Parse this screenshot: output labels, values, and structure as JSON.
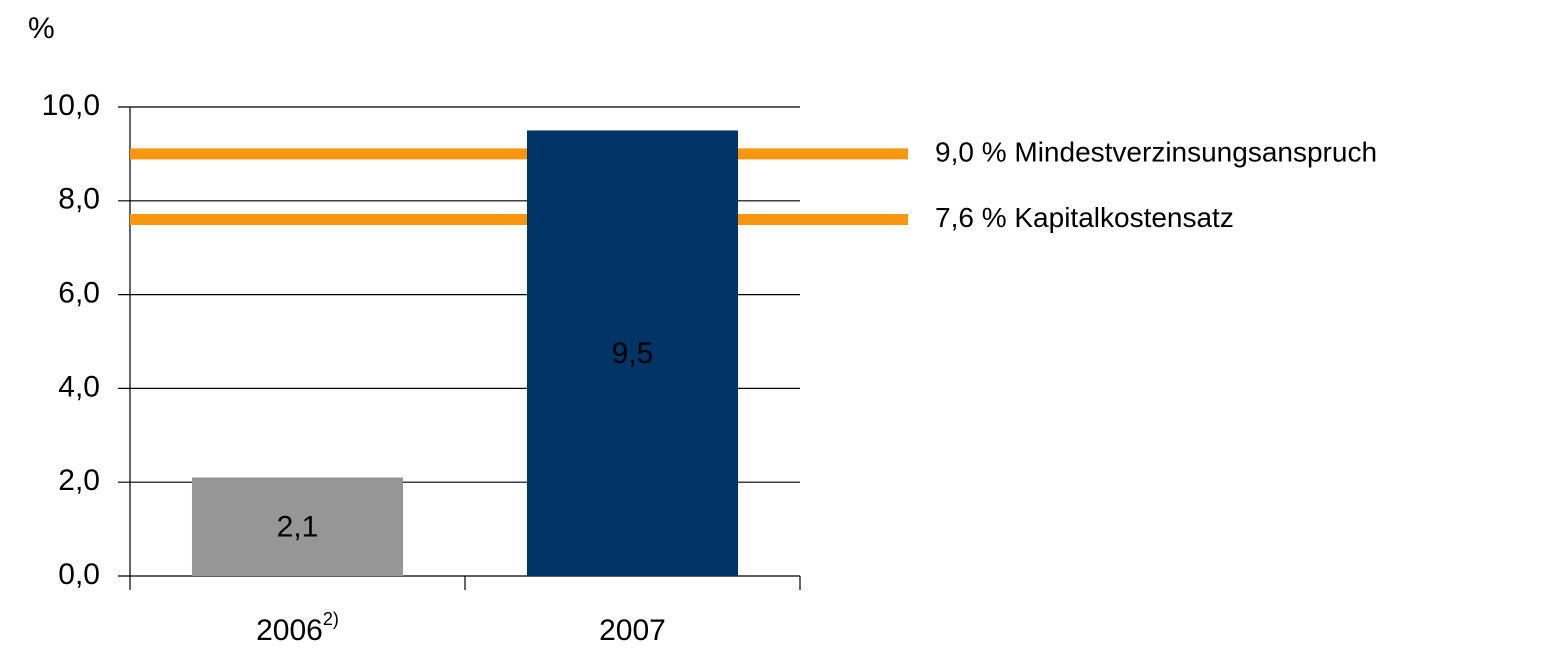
{
  "chart_data": {
    "type": "bar",
    "ylabel": "%",
    "categories": [
      "2006",
      "2007"
    ],
    "category_notes": [
      "2)",
      null
    ],
    "values": [
      2.1,
      9.5
    ],
    "value_labels": [
      "2,1",
      "9,5"
    ],
    "colors": [
      "#969696",
      "#003366"
    ],
    "ylim": [
      0,
      10
    ],
    "yticks": [
      {
        "value": 0,
        "label": "0,0"
      },
      {
        "value": 2,
        "label": "2,0"
      },
      {
        "value": 4,
        "label": "4,0"
      },
      {
        "value": 6,
        "label": "6,0"
      },
      {
        "value": 8,
        "label": "8,0"
      },
      {
        "value": 10,
        "label": "10,0"
      }
    ],
    "grid": true,
    "reference_lines": [
      {
        "value": 9.0,
        "label": "9,0 % Mindestverzinsungsanspruch",
        "color": "#f7960f"
      },
      {
        "value": 7.6,
        "label": "7,6 % Kapitalkostensatz",
        "color": "#f7960f"
      }
    ]
  }
}
